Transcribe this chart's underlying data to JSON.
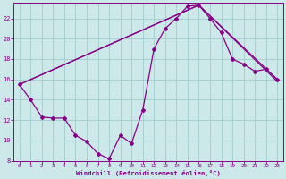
{
  "xlabel": "Windchill (Refroidissement éolien,°C)",
  "xlim": [
    -0.5,
    23.5
  ],
  "ylim": [
    8,
    23.5
  ],
  "yticks": [
    8,
    10,
    12,
    14,
    16,
    18,
    20,
    22
  ],
  "xticks": [
    0,
    1,
    2,
    3,
    4,
    5,
    6,
    7,
    8,
    9,
    10,
    11,
    12,
    13,
    14,
    15,
    16,
    17,
    18,
    19,
    20,
    21,
    22,
    23
  ],
  "bg_color": "#cce8e8",
  "grid_color": "#a0cccc",
  "line_color": "#880088",
  "line1_x": [
    0,
    1,
    2,
    3,
    4,
    5,
    6,
    7,
    8,
    9,
    10,
    11,
    12,
    13,
    14,
    15,
    16,
    17,
    18,
    19,
    20,
    21,
    22,
    23
  ],
  "line1_y": [
    15.5,
    14.0,
    12.3,
    12.2,
    12.2,
    10.5,
    9.9,
    8.7,
    8.2,
    10.5,
    9.7,
    13.0,
    19.0,
    21.0,
    22.0,
    23.2,
    23.3,
    22.0,
    20.6,
    18.0,
    17.5,
    16.8,
    17.0,
    16.0
  ],
  "line2_x": [
    0,
    16,
    23
  ],
  "line2_y": [
    15.5,
    23.3,
    16.0
  ],
  "line3_x": [
    0,
    16,
    23
  ],
  "line3_y": [
    15.5,
    23.3,
    15.8
  ]
}
